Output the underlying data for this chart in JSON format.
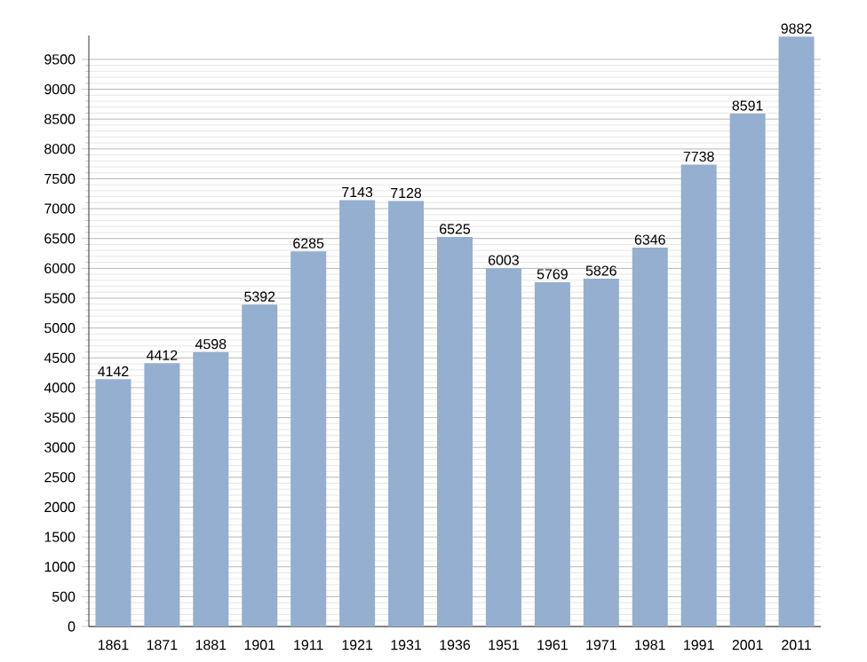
{
  "chart_data": {
    "type": "bar",
    "categories": [
      "1861",
      "1871",
      "1881",
      "1901",
      "1911",
      "1921",
      "1931",
      "1936",
      "1951",
      "1961",
      "1971",
      "1981",
      "1991",
      "2001",
      "2011"
    ],
    "values": [
      4142,
      4412,
      4598,
      5392,
      6285,
      7143,
      7128,
      6525,
      6003,
      5769,
      5826,
      6346,
      7738,
      8591,
      9882
    ],
    "color": "#94afcf",
    "ylim": [
      0,
      9900
    ],
    "yticks": [
      0,
      500,
      1000,
      1500,
      2000,
      2500,
      3000,
      3500,
      4000,
      4500,
      5000,
      5500,
      6000,
      6500,
      7000,
      7500,
      8000,
      8500,
      9000,
      9500
    ],
    "grid": "y",
    "data_labels": true
  }
}
